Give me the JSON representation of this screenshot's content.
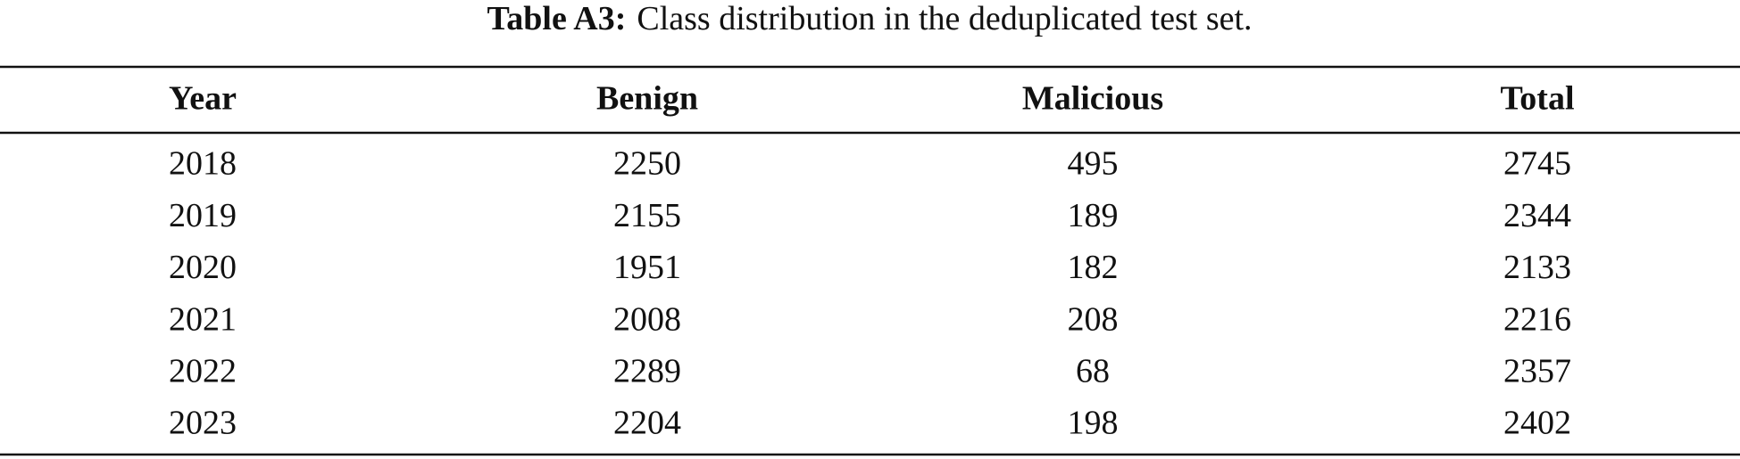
{
  "caption": {
    "label": "Table A3:",
    "text": "Class distribution in the deduplicated test set."
  },
  "table": {
    "header": [
      "Year",
      "Benign",
      "Malicious",
      "Total"
    ],
    "rows": [
      [
        2018,
        2250,
        495,
        2745
      ],
      [
        2019,
        2155,
        189,
        2344
      ],
      [
        2020,
        1951,
        182,
        2133
      ],
      [
        2021,
        2008,
        208,
        2216
      ],
      [
        2022,
        2289,
        68,
        2357
      ],
      [
        2023,
        2204,
        198,
        2402
      ]
    ]
  }
}
